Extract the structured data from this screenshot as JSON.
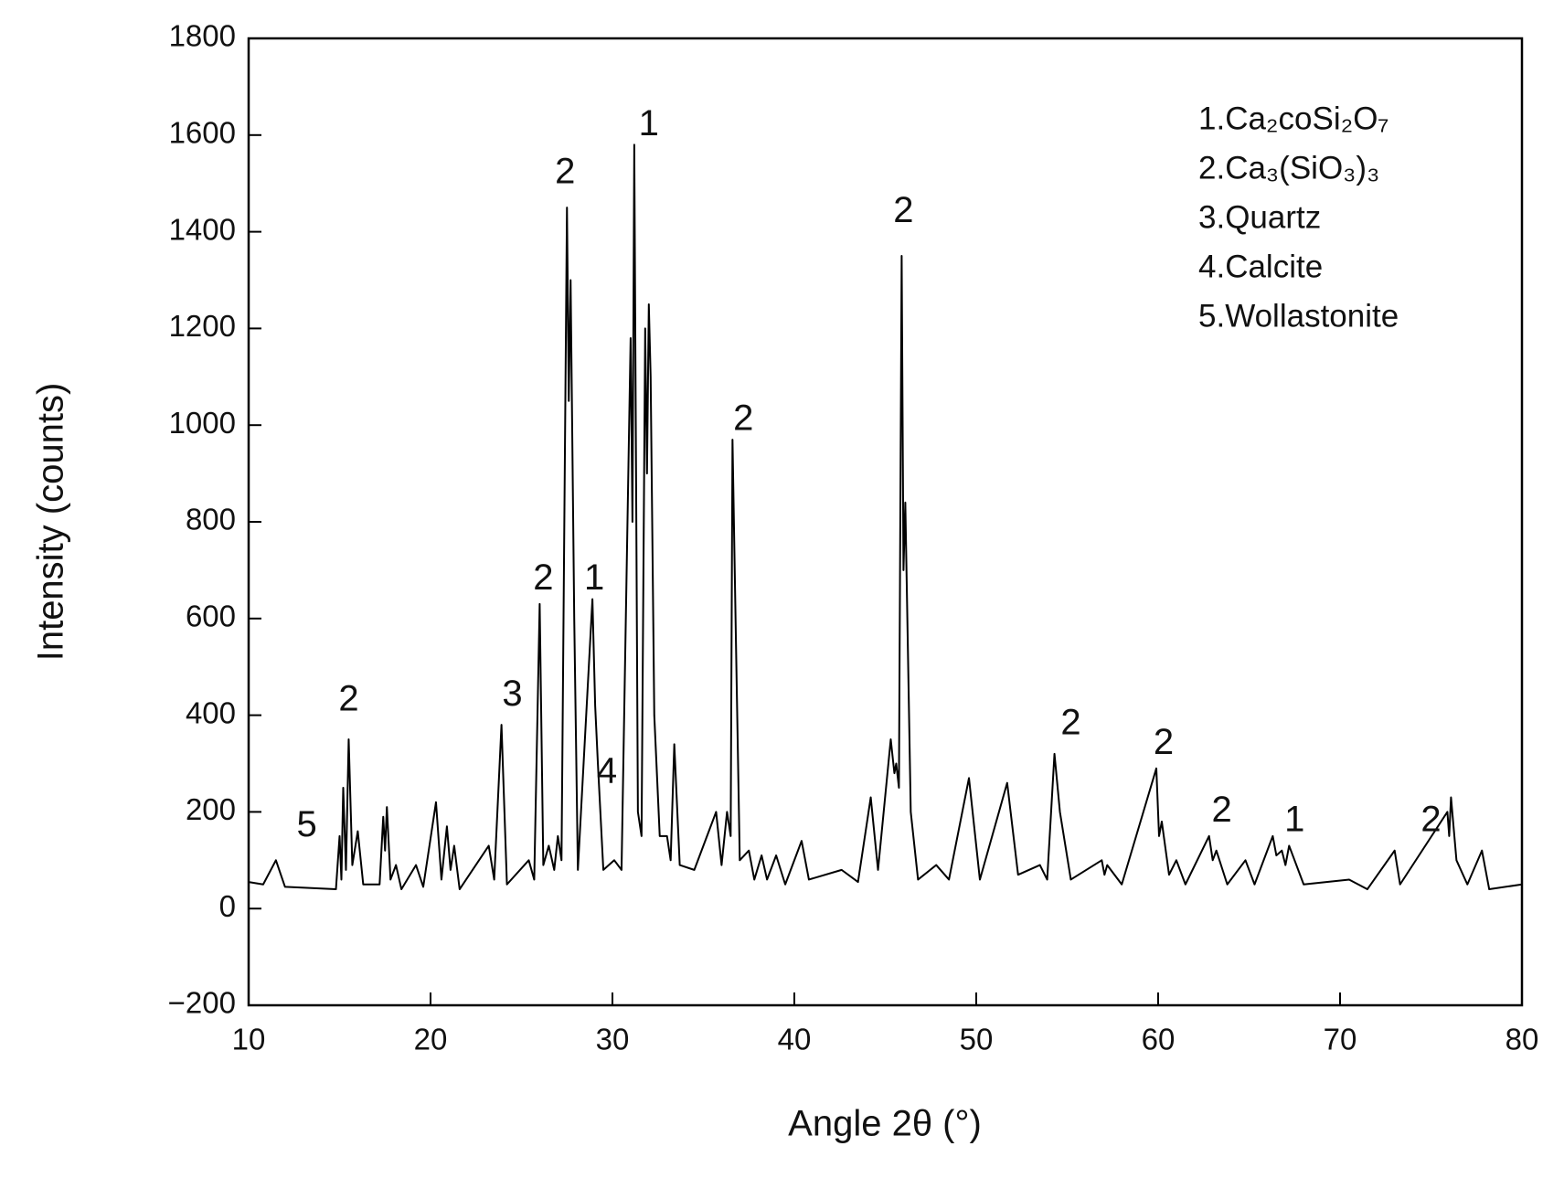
{
  "chart_data": {
    "type": "line",
    "x_label": "Angle 2θ (°)",
    "y_label": "Intensity (counts)",
    "xlim": [
      10,
      80
    ],
    "xticks": [
      10,
      20,
      30,
      40,
      50,
      60,
      70,
      80
    ],
    "ylim": [
      -200,
      1800
    ],
    "yticks": [
      {
        "value": -200,
        "label": "−200"
      },
      0,
      200,
      400,
      600,
      800,
      1000,
      1200,
      1400,
      1600,
      1800
    ],
    "legend_position": "upper right",
    "legend_entries": [
      "1.Ca₂coSi₂O₇",
      "2.Ca₃(SiO₃)₃",
      "3.Quartz",
      "4.Calcite",
      "5.Wollastonite"
    ],
    "series": [
      {
        "color": "#000000",
        "x": [
          10,
          10.8,
          11.5,
          12,
          14.8,
          15.0,
          15.1,
          15.2,
          15.35,
          15.5,
          15.7,
          16.0,
          16.3,
          17.2,
          17.4,
          17.5,
          17.6,
          17.8,
          18.1,
          18.4,
          19.2,
          19.6,
          20.3,
          20.6,
          20.9,
          21.1,
          21.3,
          21.6,
          23.2,
          23.5,
          23.9,
          24.2,
          25.4,
          25.7,
          26.0,
          26.2,
          26.5,
          26.8,
          27.0,
          27.2,
          27.5,
          27.6,
          27.7,
          27.9,
          28.1,
          28.9,
          29.05,
          29.2,
          29.5,
          30.1,
          30.5,
          31.0,
          31.1,
          31.2,
          31.4,
          31.6,
          31.8,
          31.9,
          32.0,
          32.1,
          32.3,
          32.6,
          33.0,
          33.2,
          33.4,
          33.7,
          34.5,
          35.7,
          36.0,
          36.3,
          36.5,
          36.6,
          36.8,
          37.0,
          37.5,
          37.8,
          38.2,
          38.5,
          39.0,
          39.5,
          40.4,
          40.8,
          42.6,
          43.5,
          44.2,
          44.6,
          45.3,
          45.5,
          45.6,
          45.75,
          45.9,
          46.0,
          46.1,
          46.4,
          46.8,
          47.8,
          48.5,
          49.6,
          50.2,
          51.7,
          52.3,
          53.5,
          53.9,
          54.3,
          54.6,
          55.2,
          56.9,
          57.05,
          57.2,
          58.0,
          59.9,
          60.05,
          60.2,
          60.6,
          61.0,
          61.5,
          62.8,
          63.0,
          63.2,
          63.8,
          64.8,
          65.3,
          66.3,
          66.5,
          66.8,
          67.0,
          67.2,
          68.0,
          70.5,
          71.5,
          73.0,
          73.3,
          75.9,
          76.0,
          76.1,
          76.4,
          77.0,
          77.8,
          78.2,
          80
        ],
        "values": [
          55,
          50,
          100,
          45,
          40,
          150,
          60,
          250,
          80,
          350,
          90,
          160,
          50,
          50,
          190,
          120,
          210,
          60,
          90,
          40,
          90,
          45,
          220,
          60,
          170,
          80,
          130,
          40,
          130,
          60,
          380,
          50,
          100,
          60,
          630,
          90,
          130,
          80,
          150,
          100,
          1450,
          1050,
          1300,
          600,
          80,
          640,
          420,
          300,
          80,
          100,
          80,
          1180,
          800,
          1580,
          200,
          150,
          1200,
          900,
          1250,
          1100,
          400,
          150,
          150,
          100,
          340,
          90,
          80,
          200,
          90,
          200,
          150,
          970,
          530,
          100,
          120,
          60,
          110,
          60,
          110,
          50,
          140,
          60,
          80,
          55,
          230,
          80,
          350,
          280,
          300,
          250,
          1350,
          700,
          840,
          200,
          60,
          90,
          60,
          270,
          60,
          260,
          70,
          90,
          60,
          320,
          200,
          60,
          100,
          70,
          90,
          50,
          290,
          150,
          180,
          70,
          100,
          50,
          150,
          100,
          120,
          50,
          100,
          50,
          150,
          110,
          120,
          90,
          130,
          50,
          60,
          40,
          120,
          50,
          200,
          150,
          230,
          100,
          50,
          120,
          40,
          50
        ]
      }
    ],
    "annotations": [
      {
        "text": "5",
        "x": 13.2,
        "y": 170
      },
      {
        "text": "2",
        "x": 15.5,
        "y": 430
      },
      {
        "text": "3",
        "x": 24.5,
        "y": 440
      },
      {
        "text": "2",
        "x": 26.2,
        "y": 680
      },
      {
        "text": "1",
        "x": 29.0,
        "y": 680
      },
      {
        "text": "4",
        "x": 29.7,
        "y": 280
      },
      {
        "text": "2",
        "x": 27.4,
        "y": 1520
      },
      {
        "text": "1",
        "x": 32.0,
        "y": 1620
      },
      {
        "text": "2",
        "x": 37.2,
        "y": 1010
      },
      {
        "text": "2",
        "x": 46.0,
        "y": 1440
      },
      {
        "text": "2",
        "x": 55.2,
        "y": 380
      },
      {
        "text": "2",
        "x": 60.3,
        "y": 340
      },
      {
        "text": "2",
        "x": 63.5,
        "y": 200
      },
      {
        "text": "1",
        "x": 67.5,
        "y": 180
      },
      {
        "text": "2",
        "x": 75.0,
        "y": 180
      }
    ]
  }
}
